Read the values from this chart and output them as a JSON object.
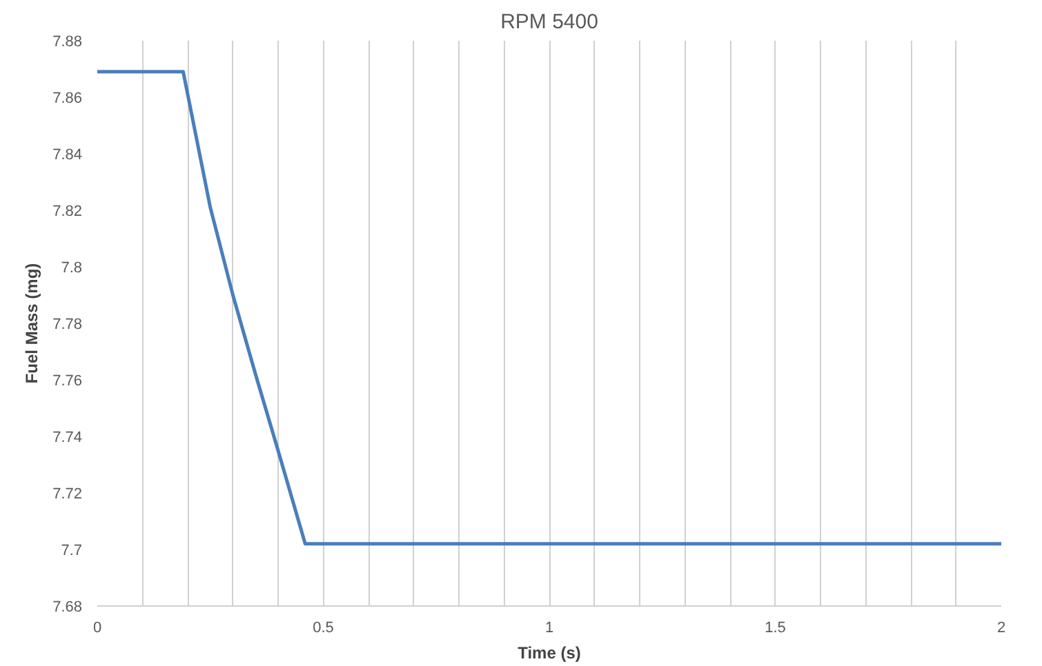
{
  "chart_data": {
    "type": "line",
    "title": "RPM 5400",
    "xlabel": "Time (s)",
    "ylabel": "Fuel Mass (mg)",
    "x": [
      0,
      0.19,
      0.22,
      0.25,
      0.3,
      0.35,
      0.4,
      0.46,
      2
    ],
    "series": [
      {
        "color": "#4a7ebb",
        "values": [
          7.869,
          7.869,
          7.845,
          7.821,
          7.79,
          7.762,
          7.735,
          7.702,
          7.702
        ]
      }
    ],
    "xlim": [
      0,
      2
    ],
    "ylim": [
      7.68,
      7.88
    ],
    "xticks": [
      0,
      {
        "value": 0.1,
        "label": null
      },
      {
        "value": 0.2,
        "label": null
      },
      {
        "value": 0.3,
        "label": null
      },
      {
        "value": 0.4,
        "label": null
      },
      0.5,
      {
        "value": 0.6,
        "label": null
      },
      {
        "value": 0.7,
        "label": null
      },
      {
        "value": 0.8,
        "label": null
      },
      {
        "value": 0.9,
        "label": null
      },
      1,
      {
        "value": 1.1,
        "label": null
      },
      {
        "value": 1.2,
        "label": null
      },
      {
        "value": 1.3,
        "label": null
      },
      {
        "value": 1.4,
        "label": null
      },
      1.5,
      {
        "value": 1.6,
        "label": null
      },
      {
        "value": 1.7,
        "label": null
      },
      {
        "value": 1.8,
        "label": null
      },
      {
        "value": 1.9,
        "label": null
      },
      2
    ],
    "yticks": [
      7.68,
      7.7,
      7.72,
      7.74,
      7.76,
      7.78,
      7.8,
      7.82,
      7.84,
      7.86,
      7.88
    ],
    "grid": "x",
    "marker": "none",
    "line_style": "solid"
  }
}
